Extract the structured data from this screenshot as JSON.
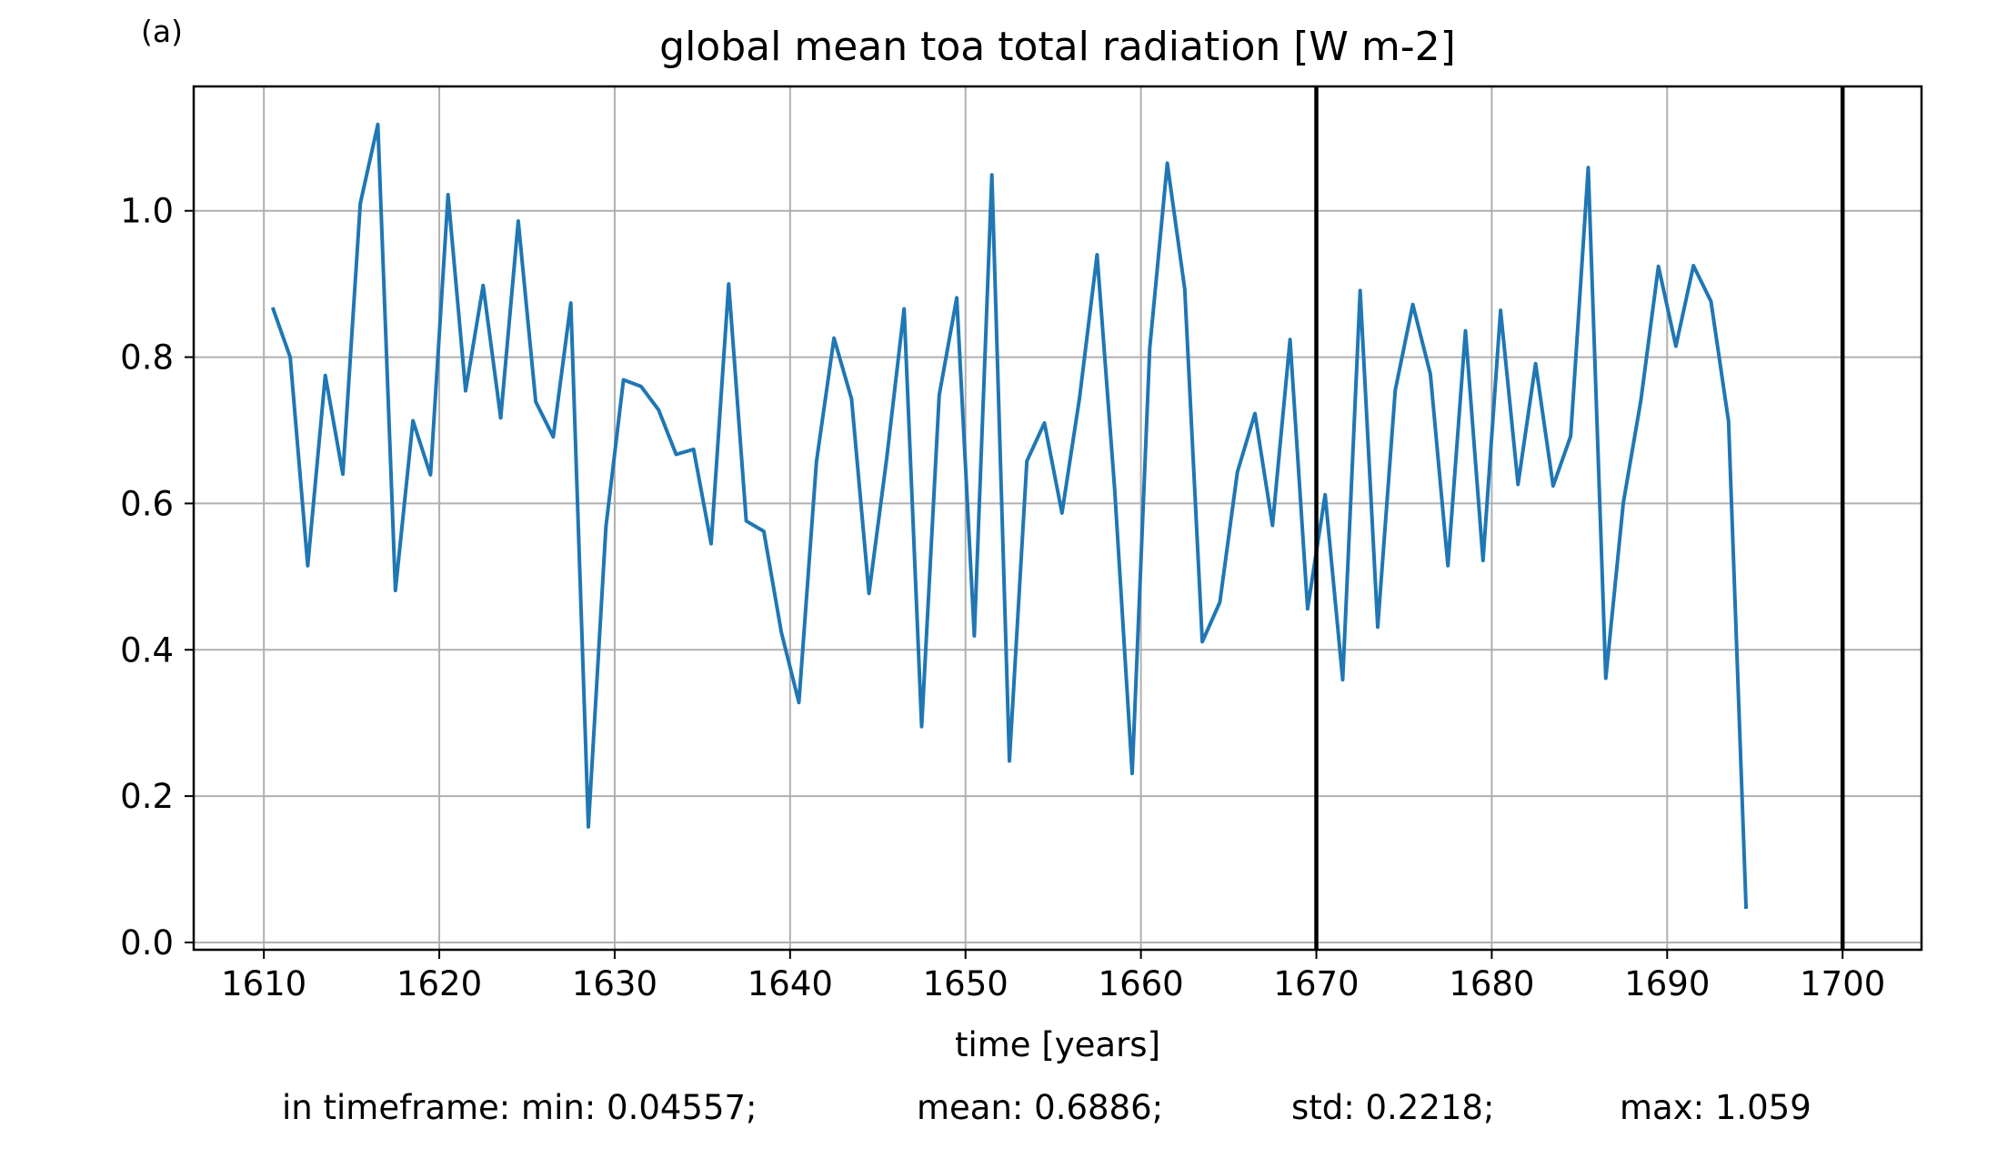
{
  "panel_label": "(a)",
  "chart_data": {
    "type": "line",
    "title": "global mean toa total radiation [W m-2]",
    "xlabel": "time [years]",
    "ylabel": "",
    "xlim": [
      1606,
      1704.5
    ],
    "ylim": [
      -0.01,
      1.17
    ],
    "xticks": [
      1610,
      1620,
      1630,
      1640,
      1650,
      1660,
      1670,
      1680,
      1690,
      1700
    ],
    "yticks": [
      0.0,
      0.2,
      0.4,
      0.6,
      0.8,
      1.0
    ],
    "ytick_labels": [
      "0.0",
      "0.2",
      "0.4",
      "0.6",
      "0.8",
      "1.0"
    ],
    "grid": true,
    "line_color": "#1f77b4",
    "vlines": [
      1670,
      1700
    ],
    "vline_color": "#000000",
    "series": [
      {
        "x": [
          1610.5,
          1611.5,
          1612.5,
          1613.5,
          1614.5,
          1615.5,
          1616.5,
          1617.5,
          1618.5,
          1619.5,
          1620.5,
          1621.5,
          1622.5,
          1623.5,
          1624.5,
          1625.5,
          1626.5,
          1627.5,
          1628.5,
          1629.5,
          1630.5,
          1631.5,
          1632.5,
          1633.5,
          1634.5,
          1635.5,
          1636.5,
          1637.5,
          1638.5,
          1639.5,
          1640.5,
          1641.5,
          1642.5,
          1643.5,
          1644.5,
          1645.5,
          1646.5,
          1647.5,
          1648.5,
          1649.5,
          1650.5,
          1651.5,
          1652.5,
          1653.5,
          1654.5,
          1655.5,
          1656.5,
          1657.5,
          1658.5,
          1659.5,
          1660.5,
          1661.5,
          1662.5,
          1663.5,
          1664.5,
          1665.5,
          1666.5,
          1667.5,
          1668.5,
          1669.5,
          1670.5,
          1671.5,
          1672.5,
          1673.5,
          1674.5,
          1675.5,
          1676.5,
          1677.5,
          1678.5,
          1679.5,
          1680.5,
          1681.5,
          1682.5,
          1683.5,
          1684.5,
          1685.5,
          1686.5,
          1687.5,
          1688.5,
          1689.5,
          1690.5,
          1691.5,
          1692.5,
          1693.5,
          1694.5
        ],
        "values": [
          0.868,
          0.8,
          0.515,
          0.775,
          0.64,
          1.01,
          1.118,
          0.481,
          0.713,
          0.639,
          1.022,
          0.754,
          0.898,
          0.717,
          0.986,
          0.739,
          0.691,
          0.874,
          0.158,
          0.568,
          0.769,
          0.76,
          0.728,
          0.667,
          0.674,
          0.545,
          0.9,
          0.576,
          0.562,
          0.424,
          0.328,
          0.657,
          0.826,
          0.743,
          0.477,
          0.66,
          0.866,
          0.295,
          0.748,
          0.881,
          0.419,
          1.049,
          0.248,
          0.658,
          0.71,
          0.587,
          0.744,
          0.94,
          0.62,
          0.231,
          0.812,
          1.065,
          0.893,
          0.411,
          0.465,
          0.643,
          0.723,
          0.57,
          0.824,
          0.456,
          0.612,
          0.359,
          0.891,
          0.431,
          0.755,
          0.872,
          0.777,
          0.515,
          0.836,
          0.522,
          0.864,
          0.626,
          0.791,
          0.624,
          0.692,
          1.059,
          0.361,
          0.601,
          0.741,
          0.924,
          0.815,
          0.925,
          0.876,
          0.712,
          0.046
        ]
      }
    ]
  },
  "stats": {
    "min": "in timeframe: min: 0.04557;",
    "mean": "mean: 0.6886;",
    "std": "std: 0.2218;",
    "max": "max: 1.059"
  }
}
